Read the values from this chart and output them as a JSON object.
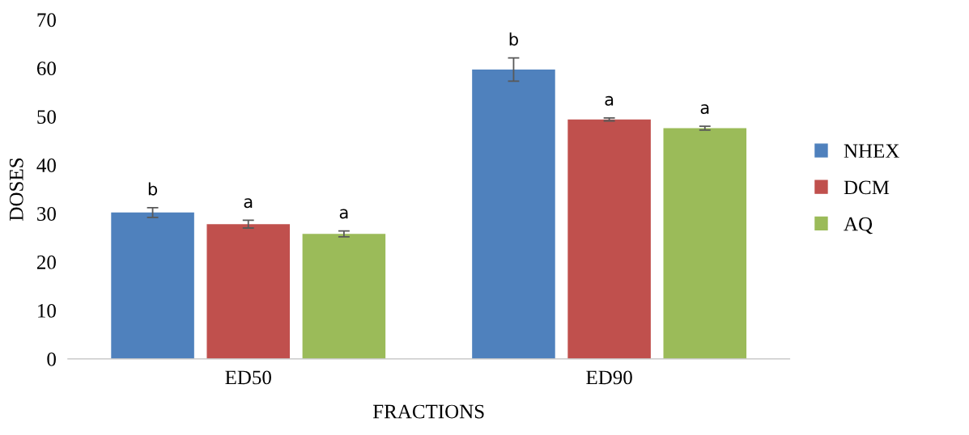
{
  "chart_data": {
    "type": "bar",
    "xlabel": "FRACTIONS",
    "ylabel": "DOSES",
    "categories": [
      "ED50",
      "ED90"
    ],
    "series": [
      {
        "name": "NHEX",
        "color": "#4f81bd",
        "values": [
          30.2,
          59.7
        ],
        "errors": [
          1.0,
          2.4
        ],
        "value_labels": [
          "b",
          "b"
        ]
      },
      {
        "name": "DCM",
        "color": "#c0504d",
        "values": [
          27.8,
          49.4
        ],
        "errors": [
          0.8,
          0.3
        ],
        "value_labels": [
          "a",
          "a"
        ]
      },
      {
        "name": "AQ",
        "color": "#9bbb59",
        "values": [
          25.8,
          47.6
        ],
        "errors": [
          0.6,
          0.4
        ],
        "value_labels": [
          "a",
          "a"
        ]
      }
    ],
    "ylim": [
      0,
      70
    ],
    "yticks": [
      0,
      10,
      20,
      30,
      40,
      50,
      60,
      70
    ],
    "grid": false,
    "legend": "right"
  }
}
